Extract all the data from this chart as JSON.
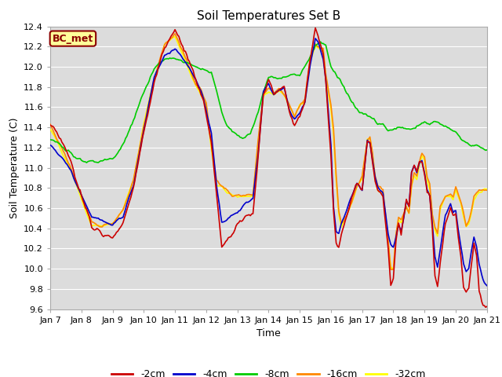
{
  "title": "Soil Temperatures Set B",
  "xlabel": "Time",
  "ylabel": "Soil Temperature (C)",
  "ylim": [
    9.6,
    12.4
  ],
  "xlim": [
    0,
    336
  ],
  "xtick_positions": [
    0,
    24,
    48,
    72,
    96,
    120,
    144,
    168,
    192,
    216,
    240,
    264,
    288,
    312,
    336
  ],
  "xtick_labels": [
    "Jan 7",
    "Jan 8",
    "Jan 9",
    "Jan 10",
    "Jan 11",
    "Jan 12",
    "Jan 13",
    "Jan 14",
    "Jan 15",
    "Jan 16",
    "Jan 17",
    "Jan 18",
    "Jan 19",
    "Jan 20",
    "Jan 21"
  ],
  "ytick_positions": [
    9.6,
    9.8,
    10.0,
    10.2,
    10.4,
    10.6,
    10.8,
    11.0,
    11.2,
    11.4,
    11.6,
    11.8,
    12.0,
    12.2,
    12.4
  ],
  "colors": {
    "-2cm": "#cc0000",
    "-4cm": "#0000cc",
    "-8cm": "#00cc00",
    "-16cm": "#ff8800",
    "-32cm": "#ffff00"
  },
  "legend_label": "BC_met",
  "legend_text_color": "#8B0000",
  "legend_bg": "#ffff99",
  "legend_border": "#8B0000",
  "plot_bg_color": "#dcdcdc",
  "fig_bg_color": "#ffffff",
  "grid_color": "#ffffff",
  "line_width": 1.2,
  "title_fontsize": 11,
  "axis_fontsize": 9,
  "tick_fontsize": 8
}
